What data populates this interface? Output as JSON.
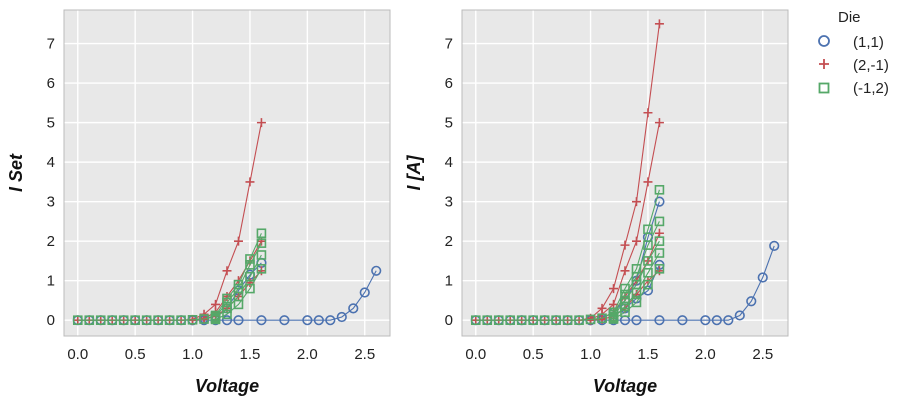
{
  "colors": {
    "panel_bg": "#e8e8e8",
    "grid": "#ffffff",
    "frame": "#bbbbbb",
    "series_1": "#4c72b0",
    "series_2": "#c44e52",
    "series_3": "#55a868"
  },
  "legend": {
    "title": "Die",
    "placement": "outside-right-top",
    "entries": [
      {
        "label": "(1,1)",
        "marker": "circle",
        "color": "#4c72b0"
      },
      {
        "label": "(2,-1)",
        "marker": "plus",
        "color": "#c44e52"
      },
      {
        "label": "(-1,2)",
        "marker": "square",
        "color": "#55a868"
      }
    ]
  },
  "chart_data": [
    {
      "type": "line",
      "xlabel": "Voltage",
      "ylabel": "I Set",
      "xlim": [
        -0.12,
        2.72
      ],
      "ylim": [
        -0.4,
        7.85
      ],
      "x_ticks": [
        "0.0",
        "0.5",
        "1.0",
        "1.5",
        "2.0",
        "2.5"
      ],
      "x_tick_values": [
        0,
        0.5,
        1.0,
        1.5,
        2.0,
        2.5
      ],
      "y_ticks": [
        "0",
        "1",
        "2",
        "3",
        "4",
        "5",
        "6",
        "7"
      ],
      "y_tick_values": [
        0,
        1,
        2,
        3,
        4,
        5,
        6,
        7
      ],
      "grid": true,
      "series": [
        {
          "name": "(1,1)",
          "marker": "circle",
          "color": "#4c72b0",
          "lines": [
            [
              [
                0,
                0
              ],
              [
                0.1,
                0
              ],
              [
                0.2,
                0
              ],
              [
                0.3,
                0
              ],
              [
                0.4,
                0
              ],
              [
                0.5,
                0
              ],
              [
                0.6,
                0
              ],
              [
                0.7,
                0
              ],
              [
                0.8,
                0
              ],
              [
                0.9,
                0
              ],
              [
                1.0,
                0
              ],
              [
                1.1,
                0
              ],
              [
                1.2,
                0
              ],
              [
                1.3,
                0
              ],
              [
                1.4,
                0
              ],
              [
                1.6,
                0
              ],
              [
                1.8,
                0
              ],
              [
                2.0,
                0
              ],
              [
                2.1,
                0
              ],
              [
                2.2,
                0
              ],
              [
                2.3,
                0.08
              ],
              [
                2.4,
                0.3
              ],
              [
                2.5,
                0.7
              ],
              [
                2.6,
                1.25
              ]
            ],
            [
              [
                1.0,
                0
              ],
              [
                1.1,
                0.05
              ],
              [
                1.2,
                0.1
              ],
              [
                1.3,
                0.3
              ],
              [
                1.4,
                0.75
              ],
              [
                1.5,
                1.15
              ],
              [
                1.6,
                1.45
              ]
            ]
          ]
        },
        {
          "name": "(2,-1)",
          "marker": "plus",
          "color": "#c44e52",
          "lines": [
            [
              [
                0,
                0
              ],
              [
                0.1,
                0
              ],
              [
                0.2,
                0
              ],
              [
                0.3,
                0
              ],
              [
                0.4,
                0
              ],
              [
                0.5,
                0
              ],
              [
                0.6,
                0
              ],
              [
                0.7,
                0
              ],
              [
                0.8,
                0
              ],
              [
                0.9,
                0
              ],
              [
                1.0,
                0.02
              ],
              [
                1.1,
                0.15
              ],
              [
                1.2,
                0.4
              ],
              [
                1.3,
                1.25
              ],
              [
                1.4,
                2.0
              ],
              [
                1.5,
                3.5
              ],
              [
                1.6,
                5.0
              ]
            ],
            [
              [
                1.0,
                0
              ],
              [
                1.1,
                0.05
              ],
              [
                1.2,
                0.2
              ],
              [
                1.3,
                0.6
              ],
              [
                1.4,
                1.0
              ],
              [
                1.5,
                1.5
              ],
              [
                1.6,
                2.0
              ]
            ],
            [
              [
                1.0,
                0
              ],
              [
                1.1,
                0.02
              ],
              [
                1.2,
                0.1
              ],
              [
                1.3,
                0.3
              ],
              [
                1.4,
                0.6
              ],
              [
                1.5,
                0.95
              ],
              [
                1.6,
                1.25
              ]
            ]
          ]
        },
        {
          "name": "(-1,2)",
          "marker": "square",
          "color": "#55a868",
          "lines": [
            [
              [
                0,
                0
              ],
              [
                0.1,
                0
              ],
              [
                0.2,
                0
              ],
              [
                0.3,
                0
              ],
              [
                0.4,
                0
              ],
              [
                0.5,
                0
              ],
              [
                0.6,
                0
              ],
              [
                0.7,
                0
              ],
              [
                0.8,
                0
              ],
              [
                0.9,
                0
              ],
              [
                1.0,
                0.01
              ],
              [
                1.1,
                0.03
              ],
              [
                1.2,
                0.12
              ],
              [
                1.3,
                0.55
              ],
              [
                1.4,
                0.9
              ],
              [
                1.5,
                1.55
              ],
              [
                1.6,
                2.2
              ]
            ],
            [
              [
                1.2,
                0.08
              ],
              [
                1.3,
                0.45
              ],
              [
                1.4,
                0.8
              ],
              [
                1.5,
                1.4
              ],
              [
                1.6,
                1.95
              ]
            ],
            [
              [
                1.2,
                0.05
              ],
              [
                1.3,
                0.3
              ],
              [
                1.4,
                0.6
              ],
              [
                1.5,
                1.1
              ],
              [
                1.6,
                1.65
              ]
            ],
            [
              [
                1.2,
                0.02
              ],
              [
                1.3,
                0.15
              ],
              [
                1.4,
                0.4
              ],
              [
                1.5,
                0.8
              ],
              [
                1.6,
                1.3
              ]
            ]
          ]
        }
      ]
    },
    {
      "type": "line",
      "xlabel": "Voltage",
      "ylabel": "I [A]",
      "xlim": [
        -0.12,
        2.72
      ],
      "ylim": [
        -0.4,
        7.85
      ],
      "x_ticks": [
        "0.0",
        "0.5",
        "1.0",
        "1.5",
        "2.0",
        "2.5"
      ],
      "x_tick_values": [
        0,
        0.5,
        1.0,
        1.5,
        2.0,
        2.5
      ],
      "y_ticks": [
        "0",
        "1",
        "2",
        "3",
        "4",
        "5",
        "6",
        "7"
      ],
      "y_tick_values": [
        0,
        1,
        2,
        3,
        4,
        5,
        6,
        7
      ],
      "grid": true,
      "series": [
        {
          "name": "(1,1)",
          "marker": "circle",
          "color": "#4c72b0",
          "lines": [
            [
              [
                0,
                0
              ],
              [
                0.1,
                0
              ],
              [
                0.2,
                0
              ],
              [
                0.3,
                0
              ],
              [
                0.4,
                0
              ],
              [
                0.5,
                0
              ],
              [
                0.6,
                0
              ],
              [
                0.7,
                0
              ],
              [
                0.8,
                0
              ],
              [
                0.9,
                0
              ],
              [
                1.0,
                0
              ],
              [
                1.1,
                0
              ],
              [
                1.2,
                0
              ],
              [
                1.3,
                0
              ],
              [
                1.4,
                0
              ],
              [
                1.6,
                0
              ],
              [
                1.8,
                0
              ],
              [
                2.0,
                0
              ],
              [
                2.1,
                0
              ],
              [
                2.2,
                0
              ],
              [
                2.3,
                0.12
              ],
              [
                2.4,
                0.48
              ],
              [
                2.5,
                1.08
              ],
              [
                2.6,
                1.88
              ]
            ],
            [
              [
                1.0,
                0
              ],
              [
                1.1,
                0.05
              ],
              [
                1.2,
                0.2
              ],
              [
                1.3,
                0.5
              ],
              [
                1.4,
                1.0
              ],
              [
                1.5,
                2.1
              ],
              [
                1.6,
                3.0
              ]
            ],
            [
              [
                1.2,
                0.1
              ],
              [
                1.3,
                0.3
              ],
              [
                1.4,
                0.55
              ],
              [
                1.5,
                0.75
              ],
              [
                1.6,
                1.4
              ]
            ]
          ]
        },
        {
          "name": "(2,-1)",
          "marker": "plus",
          "color": "#c44e52",
          "lines": [
            [
              [
                0,
                0
              ],
              [
                0.1,
                0
              ],
              [
                0.2,
                0
              ],
              [
                0.3,
                0
              ],
              [
                0.4,
                0
              ],
              [
                0.5,
                0
              ],
              [
                0.6,
                0
              ],
              [
                0.7,
                0
              ],
              [
                0.8,
                0
              ],
              [
                0.9,
                0
              ],
              [
                1.0,
                0.05
              ],
              [
                1.1,
                0.3
              ],
              [
                1.2,
                0.8
              ],
              [
                1.3,
                1.9
              ],
              [
                1.4,
                3.0
              ],
              [
                1.5,
                5.25
              ],
              [
                1.6,
                7.5
              ]
            ],
            [
              [
                1.0,
                0.02
              ],
              [
                1.1,
                0.15
              ],
              [
                1.2,
                0.4
              ],
              [
                1.3,
                1.25
              ],
              [
                1.4,
                2.0
              ],
              [
                1.5,
                3.5
              ],
              [
                1.6,
                5.0
              ]
            ],
            [
              [
                1.0,
                0
              ],
              [
                1.1,
                0.05
              ],
              [
                1.2,
                0.2
              ],
              [
                1.3,
                0.6
              ],
              [
                1.4,
                1.0
              ],
              [
                1.5,
                1.5
              ],
              [
                1.6,
                2.2
              ]
            ],
            [
              [
                1.0,
                0
              ],
              [
                1.1,
                0.02
              ],
              [
                1.2,
                0.1
              ],
              [
                1.3,
                0.3
              ],
              [
                1.4,
                0.65
              ],
              [
                1.5,
                1.0
              ],
              [
                1.6,
                1.25
              ]
            ]
          ]
        },
        {
          "name": "(-1,2)",
          "marker": "square",
          "color": "#55a868",
          "lines": [
            [
              [
                0,
                0
              ],
              [
                0.1,
                0
              ],
              [
                0.2,
                0
              ],
              [
                0.3,
                0
              ],
              [
                0.4,
                0
              ],
              [
                0.5,
                0
              ],
              [
                0.6,
                0
              ],
              [
                0.7,
                0
              ],
              [
                0.8,
                0
              ],
              [
                0.9,
                0
              ],
              [
                1.0,
                0.02
              ],
              [
                1.1,
                0.05
              ],
              [
                1.2,
                0.2
              ],
              [
                1.3,
                0.8
              ],
              [
                1.4,
                1.3
              ],
              [
                1.5,
                2.3
              ],
              [
                1.6,
                3.3
              ]
            ],
            [
              [
                1.2,
                0.15
              ],
              [
                1.3,
                0.65
              ],
              [
                1.4,
                1.1
              ],
              [
                1.5,
                1.9
              ],
              [
                1.6,
                2.5
              ]
            ],
            [
              [
                1.2,
                0.1
              ],
              [
                1.3,
                0.5
              ],
              [
                1.4,
                0.9
              ],
              [
                1.5,
                1.5
              ],
              [
                1.6,
                2.0
              ]
            ],
            [
              [
                1.2,
                0.06
              ],
              [
                1.3,
                0.35
              ],
              [
                1.4,
                0.7
              ],
              [
                1.5,
                1.2
              ],
              [
                1.6,
                1.7
              ]
            ],
            [
              [
                1.2,
                0.03
              ],
              [
                1.3,
                0.2
              ],
              [
                1.4,
                0.45
              ],
              [
                1.5,
                0.9
              ],
              [
                1.6,
                1.3
              ]
            ]
          ]
        }
      ]
    }
  ]
}
